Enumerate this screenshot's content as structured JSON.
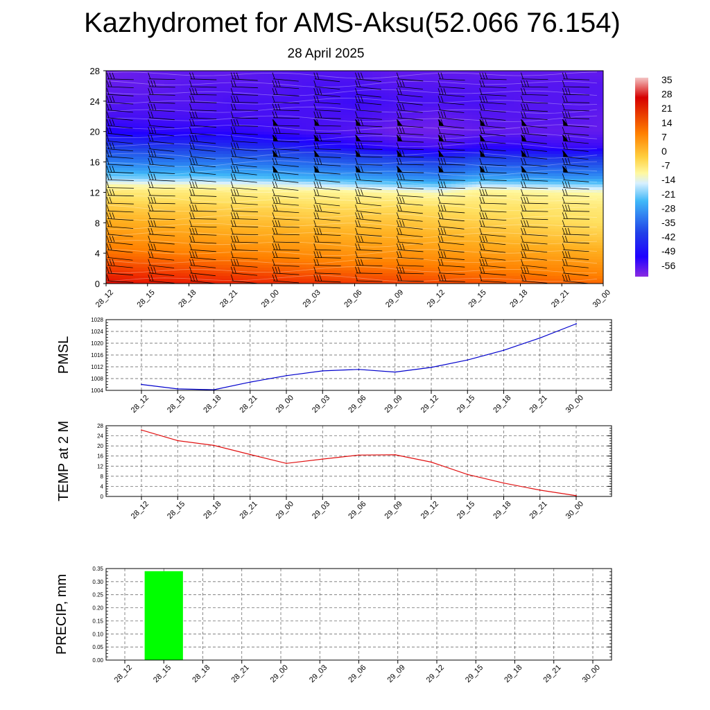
{
  "header": {
    "title": "Kazhydromet for AMS-Aksu(52.066 76.154)",
    "date": "28 April 2025"
  },
  "colors": {
    "pmsl_line": "#0000cc",
    "temp_line": "#e01010",
    "precip_bar": "#00ff00",
    "grid": "#555555"
  },
  "chart_data": [
    {
      "type": "heatmap",
      "name": "vertical-profile",
      "title": "",
      "x_ticks": [
        "28_12",
        "28_15",
        "28_18",
        "28_21",
        "29_00",
        "29_03",
        "29_06",
        "29_09",
        "29_12",
        "29_15",
        "29_18",
        "29_21",
        "30_00"
      ],
      "y_ticks": [
        0,
        4,
        8,
        12,
        16,
        20,
        24,
        28
      ],
      "ylim": [
        0,
        28
      ],
      "colorbar": {
        "labels": [
          "35",
          "28",
          "21",
          "14",
          "7",
          "0",
          "-7",
          "-14",
          "-21",
          "-28",
          "-35",
          "-42",
          "-49",
          "-56"
        ],
        "range": [
          -60,
          38
        ]
      },
      "field": {
        "columns": 13,
        "levels": [
          0,
          2,
          4,
          6,
          8,
          10,
          12,
          13,
          14,
          16,
          18,
          20,
          22,
          24,
          26,
          28
        ],
        "values": [
          [
            30,
            28,
            27,
            26,
            25,
            24,
            23,
            22,
            21,
            20,
            19,
            18,
            17
          ],
          [
            22,
            21,
            20,
            19,
            18,
            17,
            16,
            16,
            15,
            14,
            13,
            12,
            11
          ],
          [
            16,
            15,
            14,
            13,
            12,
            11,
            10,
            10,
            9,
            8,
            7,
            6,
            5
          ],
          [
            10,
            9,
            8,
            7,
            6,
            6,
            5,
            5,
            4,
            3,
            2,
            1,
            0
          ],
          [
            5,
            4,
            3,
            2,
            2,
            1,
            1,
            1,
            0,
            -1,
            -2,
            -3,
            -4
          ],
          [
            0,
            -1,
            -1,
            -2,
            -2,
            -3,
            -3,
            -3,
            -4,
            -5,
            -5,
            -6,
            -7
          ],
          [
            -6,
            -7,
            -7,
            -8,
            -9,
            -10,
            -11,
            -12,
            -14,
            -10,
            -11,
            -12,
            -13
          ],
          [
            -13,
            -14,
            -14,
            -15,
            -16,
            -18,
            -20,
            -22,
            -24,
            -19,
            -20,
            -21,
            -22
          ],
          [
            -22,
            -23,
            -23,
            -24,
            -25,
            -27,
            -29,
            -31,
            -33,
            -29,
            -30,
            -31,
            -31
          ],
          [
            -34,
            -35,
            -35,
            -36,
            -37,
            -39,
            -41,
            -43,
            -45,
            -42,
            -43,
            -44,
            -44
          ],
          [
            -45,
            -46,
            -46,
            -47,
            -48,
            -50,
            -52,
            -54,
            -55,
            -53,
            -53,
            -54,
            -54
          ],
          [
            -52,
            -53,
            -53,
            -53,
            -54,
            -55,
            -56,
            -58,
            -58,
            -57,
            -57,
            -57,
            -57
          ],
          [
            -55,
            -55,
            -55,
            -55,
            -55,
            -55,
            -55,
            -56,
            -57,
            -56,
            -56,
            -56,
            -57
          ],
          [
            -56,
            -56,
            -56,
            -55,
            -55,
            -55,
            -54,
            -55,
            -55,
            -55,
            -56,
            -56,
            -56
          ],
          [
            -57,
            -57,
            -56,
            -56,
            -56,
            -55,
            -55,
            -56,
            -56,
            -56,
            -56,
            -56,
            -56
          ],
          [
            -58,
            -57,
            -57,
            -57,
            -56,
            -56,
            -56,
            -57,
            -57,
            -57,
            -57,
            -57,
            -57
          ]
        ]
      }
    },
    {
      "type": "line",
      "name": "pmsl",
      "ylabel": "PMSL",
      "x": [
        "28_12",
        "28_15",
        "28_18",
        "28_21",
        "29_00",
        "29_03",
        "29_06",
        "29_09",
        "29_12",
        "29_15",
        "29_18",
        "29_21",
        "30_00"
      ],
      "values": [
        1006.0,
        1004.5,
        1004.2,
        1006.8,
        1009.0,
        1010.6,
        1011.1,
        1010.2,
        1011.8,
        1014.3,
        1017.6,
        1021.8,
        1026.6
      ],
      "ylim": [
        1004,
        1028
      ],
      "y_ticks": [
        1004,
        1008,
        1012,
        1016,
        1020,
        1024,
        1028
      ]
    },
    {
      "type": "line",
      "name": "temp2m",
      "ylabel": "TEMP at 2 M",
      "x": [
        "28_12",
        "28_15",
        "28_18",
        "28_21",
        "29_00",
        "29_03",
        "29_06",
        "29_09",
        "29_12",
        "29_15",
        "29_18",
        "29_21",
        "30_00"
      ],
      "values": [
        26.3,
        22.1,
        20.2,
        16.6,
        13.1,
        14.8,
        16.4,
        16.5,
        13.6,
        8.7,
        5.3,
        2.5,
        0.3
      ],
      "ylim": [
        0,
        28
      ],
      "y_ticks": [
        0,
        4,
        8,
        12,
        16,
        20,
        24,
        28
      ]
    },
    {
      "type": "bar",
      "name": "precip",
      "ylabel": "PRECIP, mm",
      "x": [
        "28_12",
        "28_15",
        "28_18",
        "28_21",
        "29_00",
        "29_03",
        "29_06",
        "29_09",
        "29_12",
        "29_15",
        "29_18",
        "29_21",
        "30_00"
      ],
      "values": [
        0,
        0.34,
        0,
        0,
        0,
        0,
        0,
        0,
        0,
        0,
        0,
        0,
        0
      ],
      "ylim": [
        0,
        0.35
      ],
      "y_ticks": [
        "0.00",
        "0.05",
        "0.10",
        "0.15",
        "0.20",
        "0.25",
        "0.30",
        "0.35"
      ]
    }
  ]
}
